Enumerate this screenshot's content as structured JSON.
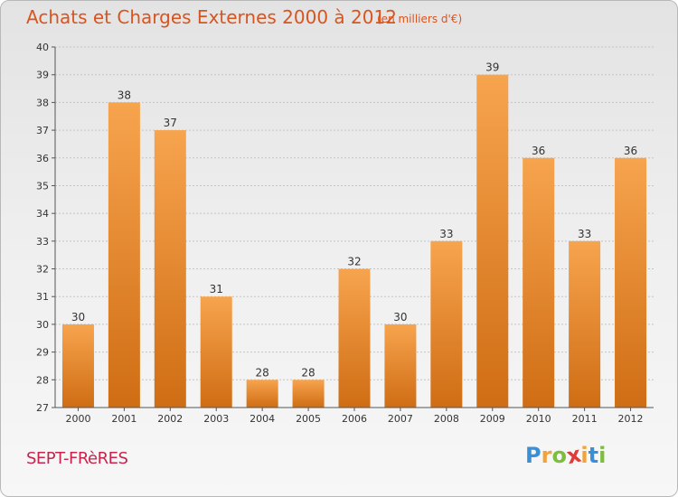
{
  "title": "Achats et Charges Externes 2000 à 2012",
  "subtitle": "(en milliers d'€)",
  "commune": "SEPT-FRèRES",
  "logo": {
    "text": "Proxiti",
    "letters": [
      "P",
      "r",
      "o",
      "x",
      "i",
      "t",
      "i"
    ],
    "letter_colors": [
      "#3a8fd6",
      "#f3a23b",
      "#7cbf3d",
      "#e03a3a",
      "#f3a23b",
      "#3a8fd6",
      "#7cbf3d"
    ]
  },
  "colors": {
    "bar_light": "#f7a44e",
    "bar_dark": "#cf6d14",
    "title": "#d9541e",
    "commune": "#c8244e",
    "grid": "#c4c4c4"
  },
  "chart_data": {
    "type": "bar",
    "title": "Achats et Charges Externes 2000 à 2012",
    "subtitle": "(en milliers d'€)",
    "categories": [
      "2000",
      "2001",
      "2002",
      "2003",
      "2004",
      "2005",
      "2006",
      "2007",
      "2008",
      "2009",
      "2010",
      "2011",
      "2012"
    ],
    "values": [
      30,
      38,
      37,
      31,
      28,
      28,
      32,
      30,
      33,
      39,
      36,
      33,
      36
    ],
    "data_labels": [
      "30",
      "38",
      "37",
      "31",
      "28",
      "28",
      "32",
      "30",
      "33",
      "39",
      "36",
      "33",
      "36"
    ],
    "ylim": [
      27,
      40
    ],
    "yticks": [
      "27",
      "28",
      "29",
      "30",
      "31",
      "32",
      "33",
      "34",
      "35",
      "36",
      "37",
      "38",
      "39",
      "40"
    ],
    "grid": true,
    "xlabel": "",
    "ylabel": ""
  }
}
